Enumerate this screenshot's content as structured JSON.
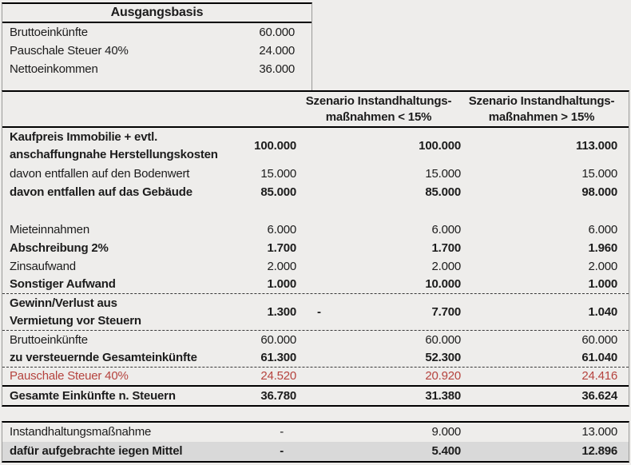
{
  "colors": {
    "background": "#eeedeb",
    "text": "#1c1c1c",
    "red_text": "#b5433e",
    "highlight_row": "#d9d9d9",
    "border": "#000000"
  },
  "ausgangsbasis": {
    "title": "Ausgangsbasis",
    "rows": [
      {
        "label": "Bruttoeinkünfte",
        "value": "60.000"
      },
      {
        "label": "Pauschale Steuer 40%",
        "value": "24.000"
      },
      {
        "label": "Nettoeinkommen",
        "value": "36.000"
      }
    ]
  },
  "scenario_table": {
    "column_headers": {
      "lt15": {
        "line1": "Szenario Instandhaltungs-",
        "line2": "maßnahmen < 15%"
      },
      "gt15": {
        "line1": "Szenario Instandhaltungs-",
        "line2": "maßnahmen > 15%"
      }
    },
    "rows": [
      {
        "label_lines": [
          "Kaufpreis Immobilie + evtl.",
          "anschaffungnahe Herstellungskosten"
        ],
        "bold": true,
        "tall": true,
        "values": [
          "100.000",
          "100.000",
          "113.000"
        ]
      },
      {
        "label_lines": [
          "davon entfallen auf den Bodenwert"
        ],
        "bold": false,
        "values": [
          "15.000",
          "15.000",
          "15.000"
        ]
      },
      {
        "label_lines": [
          "davon entfallen auf das Gebäude"
        ],
        "bold": true,
        "values": [
          "85.000",
          "85.000",
          "98.000"
        ]
      },
      {
        "blank": true
      },
      {
        "label_lines": [
          "Mieteinnahmen"
        ],
        "bold": false,
        "values": [
          "6.000",
          "6.000",
          "6.000"
        ]
      },
      {
        "label_lines": [
          "Abschreibung 2%"
        ],
        "bold": true,
        "values": [
          "1.700",
          "1.700",
          "1.960"
        ]
      },
      {
        "label_lines": [
          "Zinsaufwand"
        ],
        "bold": false,
        "values": [
          "2.000",
          "2.000",
          "2.000"
        ]
      },
      {
        "label_lines": [
          "Sonstiger Aufwand"
        ],
        "bold": true,
        "values": [
          "1.000",
          "10.000",
          "1.000"
        ],
        "sep_after": "dashed"
      },
      {
        "label_lines": [
          "Gewinn/Verlust aus",
          "Vermietung vor Steuern"
        ],
        "bold": true,
        "tall": true,
        "values": [
          "1.300",
          "7.700",
          "1.040"
        ],
        "negative_cols": [
          1
        ],
        "sep_after": "dashed"
      },
      {
        "label_lines": [
          "Bruttoeinkünfte"
        ],
        "bold": false,
        "values": [
          "60.000",
          "60.000",
          "60.000"
        ]
      },
      {
        "label_lines": [
          "zu versteuernde Gesamteinkünfte"
        ],
        "bold": true,
        "values": [
          "61.300",
          "52.300",
          "61.040"
        ],
        "sep_after": "dashed"
      },
      {
        "label_lines": [
          "Pauschale Steuer 40%"
        ],
        "red": true,
        "values": [
          "24.520",
          "20.920",
          "24.416"
        ],
        "sep_after": "solid"
      },
      {
        "label_lines": [
          "Gesamte Einkünfte n. Steuern"
        ],
        "bold": true,
        "values": [
          "36.780",
          "31.380",
          "36.624"
        ]
      }
    ]
  },
  "bottom_table": {
    "rows": [
      {
        "label": "Instandhaltungsmaßnahme",
        "bold": false,
        "highlight": false,
        "values": [
          "-",
          "9.000",
          "13.000"
        ]
      },
      {
        "label": "dafür aufgebrachte iegen Mittel",
        "bold": true,
        "highlight": true,
        "values": [
          "-",
          "5.400",
          "12.896"
        ]
      }
    ]
  }
}
